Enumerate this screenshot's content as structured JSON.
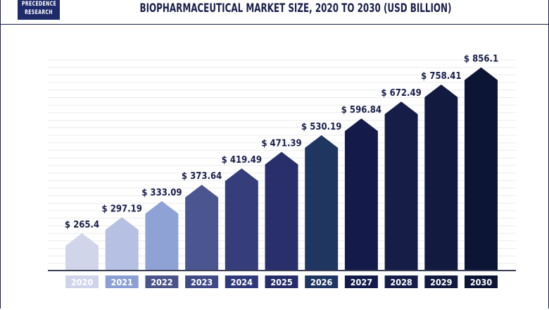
{
  "brand": {
    "logo_line1": "PRECEDENCE",
    "logo_line2": "RESEARCH"
  },
  "chart_data": {
    "type": "bar",
    "title": "BIOPHARMACEUTICAL MARKET SIZE, 2020 TO 2030 (USD BILLION)",
    "categories": [
      "2020",
      "2021",
      "2022",
      "2023",
      "2024",
      "2025",
      "2026",
      "2027",
      "2028",
      "2029",
      "2030"
    ],
    "values": [
      265.4,
      297.19,
      333.09,
      373.64,
      419.49,
      471.39,
      530.19,
      596.84,
      672.49,
      758.41,
      856.1
    ],
    "data_labels": [
      "$ 265.4",
      "$ 297.19",
      "$ 333.09",
      "$ 373.64",
      "$ 419.49",
      "$ 471.39",
      "$ 530.19",
      "$ 596.84",
      "$ 672.49",
      "$ 758.41",
      "$ 856.1"
    ],
    "bar_colors": [
      "#d0d5ea",
      "#b5c0e2",
      "#8ea2d6",
      "#4b5690",
      "#353d7a",
      "#292f6b",
      "#1f3661",
      "#141b4a",
      "#161e48",
      "#121a40",
      "#0d1535"
    ],
    "label_colors": [
      "#cfd4ea",
      "#8b9fd4",
      "#4b5488",
      "#404a86",
      "#30397a",
      "#262d68",
      "#1f3661",
      "#141b4a",
      "#161e48",
      "#121a40",
      "#0d1535"
    ],
    "xlabel": "",
    "ylabel": "",
    "grid": true,
    "legend": "none"
  }
}
